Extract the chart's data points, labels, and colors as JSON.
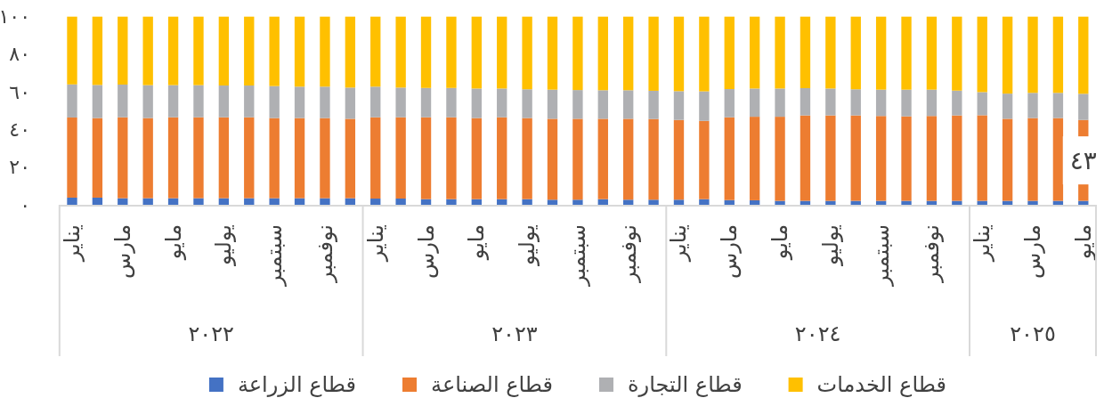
{
  "chart_data": {
    "type": "bar",
    "stacked": true,
    "categories": [
      "يناير",
      null,
      "مارس",
      null,
      "مايو",
      null,
      "يوليو",
      null,
      "سبتمبر",
      null,
      "نوفمبر",
      null,
      "يناير",
      null,
      "مارس",
      null,
      "مايو",
      null,
      "يوليو",
      null,
      "سبتمبر",
      null,
      "نوفمبر",
      null,
      "يناير",
      null,
      "مارس",
      null,
      "مايو",
      null,
      "يوليو",
      null,
      "سبتمبر",
      null,
      "نوفمبر",
      null,
      "يناير",
      null,
      "مارس",
      null,
      "مايو"
    ],
    "annotations": [
      "٢٠٢٢",
      "٢٠٢٣",
      "٢٠٢٤",
      "٢٠٢٥"
    ],
    "series": [
      {
        "name": "قطاع الزراعة",
        "color": "#4472c4",
        "values": [
          3.8,
          3.8,
          3.5,
          3.5,
          3.5,
          3.5,
          3.5,
          3.5,
          3.5,
          3.5,
          3.5,
          3.5,
          3.3,
          3.3,
          3.0,
          3.0,
          3.0,
          3.0,
          3.0,
          2.7,
          2.7,
          3.0,
          2.7,
          2.7,
          2.7,
          3.0,
          2.5,
          2.4,
          2.1,
          2.1,
          2.1,
          2.1,
          2.1,
          2.1,
          2.1,
          2.1,
          2.1,
          2.1,
          2.1,
          2.1,
          2.1
        ]
      },
      {
        "name": "قطاع الصناعة",
        "color": "#ed7d31",
        "values": [
          42.6,
          42.3,
          43.0,
          42.6,
          43.0,
          43.0,
          43.0,
          43.0,
          42.6,
          42.6,
          42.6,
          42.2,
          43.2,
          43.2,
          43.5,
          43.5,
          43.1,
          43.5,
          43.1,
          43.0,
          43.0,
          42.7,
          43.0,
          42.9,
          42.4,
          41.6,
          44.0,
          44.4,
          44.7,
          45.4,
          45.4,
          45.4,
          45.1,
          44.9,
          45.1,
          45.4,
          45.5,
          43.6,
          44.0,
          44.0,
          43
        ],
        "value_labels": [
          null,
          null,
          null,
          null,
          null,
          null,
          null,
          null,
          null,
          null,
          null,
          null,
          null,
          null,
          null,
          null,
          null,
          null,
          null,
          null,
          null,
          null,
          null,
          null,
          null,
          null,
          null,
          null,
          null,
          null,
          null,
          null,
          null,
          null,
          null,
          null,
          null,
          null,
          null,
          null,
          "٤٣"
        ]
      },
      {
        "name": "قطاع التجارة",
        "color": "#afb0b3",
        "values": [
          17.6,
          17.6,
          17.4,
          17.5,
          17.1,
          17.1,
          16.9,
          16.9,
          17.0,
          16.7,
          16.7,
          16.6,
          16.3,
          15.8,
          15.6,
          15.6,
          15.7,
          15.3,
          15.3,
          15.5,
          15.3,
          15.2,
          15.2,
          15.0,
          15.3,
          15.7,
          15.0,
          15.0,
          15.0,
          14.5,
          14.3,
          13.9,
          14.0,
          14.2,
          14.0,
          13.2,
          12.3,
          13.4,
          13.4,
          13.4,
          13.9
        ]
      },
      {
        "name": "قطاع الخدمات",
        "color": "#ffc000",
        "values": [
          36.0,
          36.3,
          36.1,
          36.4,
          36.4,
          36.4,
          36.6,
          36.6,
          36.9,
          37.2,
          37.2,
          37.7,
          37.2,
          37.7,
          37.9,
          37.9,
          38.2,
          38.2,
          38.6,
          38.8,
          39.0,
          39.1,
          39.1,
          39.4,
          39.6,
          39.7,
          38.5,
          38.2,
          38.2,
          38.0,
          38.2,
          38.6,
          38.8,
          38.8,
          38.8,
          39.3,
          40.1,
          40.9,
          40.5,
          40.5,
          41.0
        ]
      }
    ],
    "ylim": [
      0,
      100
    ],
    "yticks": [
      {
        "value": 0,
        "label": "٠"
      },
      {
        "value": 20,
        "label": "٢٠"
      },
      {
        "value": 40,
        "label": "٤٠"
      },
      {
        "value": 60,
        "label": "٦٠"
      },
      {
        "value": 80,
        "label": "٨٠"
      },
      {
        "value": 100,
        "label": "١٠٠"
      }
    ],
    "legend": "bottom"
  }
}
